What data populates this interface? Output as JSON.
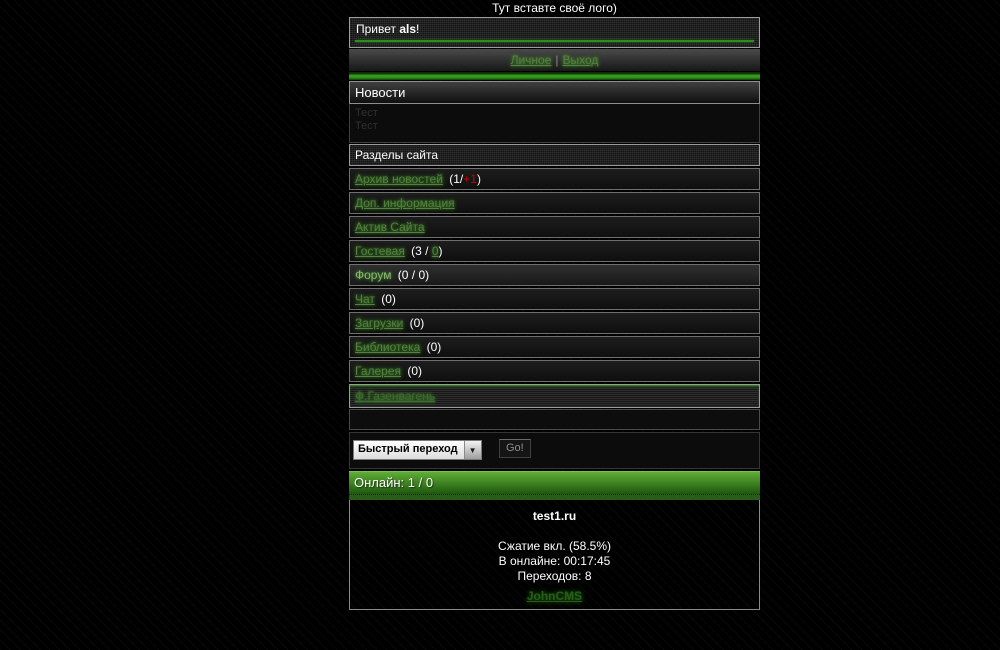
{
  "logo_text": "Тут вставте своё лого)",
  "greeting": {
    "prefix": "Привет ",
    "username": "als",
    "suffix": "!"
  },
  "topnav": {
    "personal": "Личное",
    "separator": "|",
    "logout": "Выход"
  },
  "news": {
    "title": "Новости",
    "items": [
      "Тест",
      "Тест"
    ]
  },
  "sections": {
    "title": "Разделы сайта",
    "items": [
      {
        "label": "Архив новостей",
        "counter_pre": "(1/",
        "counter_hot": "+1",
        "counter_post": ")"
      },
      {
        "label": "Доп. информация"
      },
      {
        "label": "Актив Сайта"
      },
      {
        "label": "Гостевая",
        "counter_pre": "(3 / ",
        "counter_link": "0",
        "counter_post": ")"
      },
      {
        "label": "Форум",
        "counter_pre": "(0 / 0)"
      },
      {
        "label": "Чат",
        "counter_pre": "(0)"
      },
      {
        "label": "Загрузки",
        "counter_pre": "(0)"
      },
      {
        "label": "Библиотека",
        "counter_pre": "(0)"
      },
      {
        "label": "Галерея",
        "counter_pre": "(0)"
      }
    ],
    "extra_link": "Ф.Газенвагень"
  },
  "quick_nav": {
    "select_value": "Быстрый переход",
    "arrow": "▼",
    "go_label": "Go!"
  },
  "online_bar": "Онлайн: 1 / 0",
  "footer": {
    "site": "test1.ru",
    "compression": "Сжатие вкл. (58.5%)",
    "online_time": "В онлайне: 00:17:45",
    "transitions": "Переходов: 8",
    "engine": "JohnCMS"
  },
  "colors": {
    "accent_green": "#38a31e",
    "link_green": "#567f42",
    "hot_red": "#d20000"
  }
}
